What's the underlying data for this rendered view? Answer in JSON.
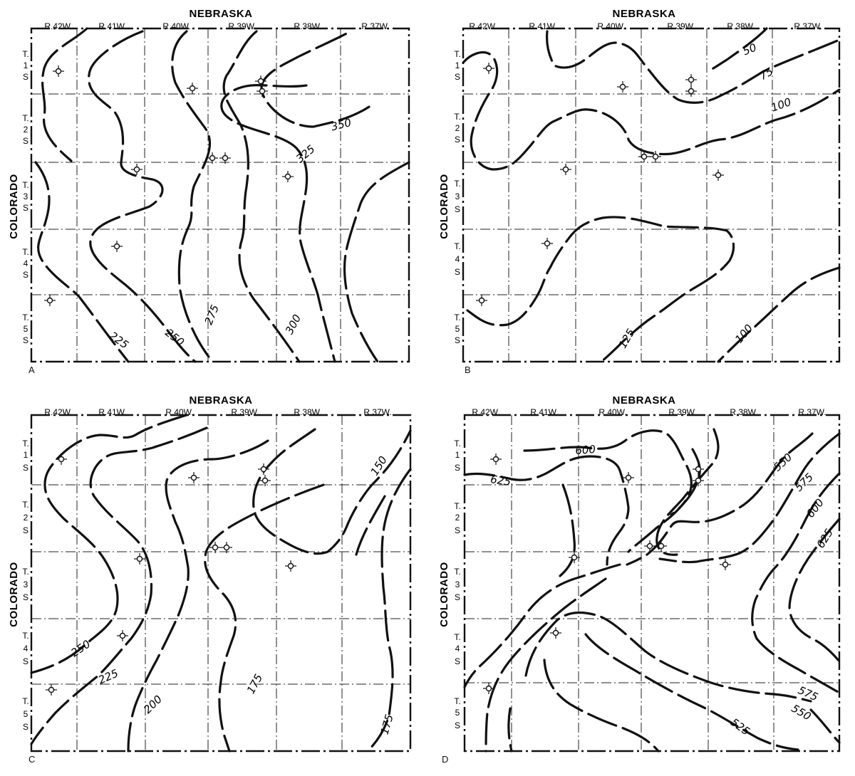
{
  "panels": [
    {
      "letter": "A",
      "north_state": "NEBRASKA",
      "west_state": "COLORADO",
      "ranges": [
        "R.42W.",
        "R.41W.",
        "R.40W.",
        "R.39W.",
        "R.38W.",
        "R.37W."
      ],
      "townships": [
        [
          "T.",
          "1",
          "S"
        ],
        [
          "T.",
          "2",
          "S"
        ],
        [
          "T.",
          "3",
          "S"
        ],
        [
          "T.",
          "4",
          "S"
        ],
        [
          "T.",
          "5",
          "S"
        ]
      ],
      "contour_labels": [
        "350",
        "325",
        "300",
        "275",
        "250",
        "225"
      ],
      "well_count": 10
    },
    {
      "letter": "B",
      "north_state": "NEBRASKA",
      "west_state": "COLORADO",
      "ranges": [
        "R.42W.",
        "R.41W.",
        "R.40W.",
        "R.39W.",
        "R.38W.",
        "R.37W."
      ],
      "townships": [
        [
          "T.",
          "1",
          "S"
        ],
        [
          "T.",
          "2",
          "S"
        ],
        [
          "T.",
          "3",
          "S"
        ],
        [
          "T.",
          "4",
          "S"
        ],
        [
          "T.",
          "5",
          "S"
        ]
      ],
      "contour_labels": [
        "50",
        "75",
        "100",
        "125",
        "100"
      ],
      "well_count": 10
    },
    {
      "letter": "C",
      "north_state": "NEBRASKA",
      "west_state": "COLORADO",
      "ranges": [
        "R.42W.",
        "R.41W.",
        "R.40W.",
        "R.39W.",
        "R.38W.",
        "R.37W."
      ],
      "townships": [
        [
          "T.",
          "1",
          "S"
        ],
        [
          "T.",
          "2",
          "S"
        ],
        [
          "T.",
          "3",
          "S"
        ],
        [
          "T.",
          "4",
          "S"
        ],
        [
          "T.",
          "5",
          "S"
        ]
      ],
      "contour_labels": [
        "150",
        "250",
        "225",
        "200",
        "175",
        "175"
      ],
      "well_count": 10
    },
    {
      "letter": "D",
      "north_state": "NEBRASKA",
      "west_state": "COLORADO",
      "ranges": [
        "R.42W.",
        "R.41W.",
        "R.40W.",
        "R.39W.",
        "R.38W.",
        "R.37W."
      ],
      "townships": [
        [
          "T.",
          "1",
          "S"
        ],
        [
          "T.",
          "2",
          "S"
        ],
        [
          "T.",
          "3",
          "S"
        ],
        [
          "T.",
          "4",
          "S"
        ],
        [
          "T.",
          "5",
          "S"
        ]
      ],
      "contour_labels": [
        "600",
        "625",
        "550",
        "575",
        "600",
        "625",
        "575",
        "550",
        "525"
      ],
      "well_count": 10
    }
  ]
}
